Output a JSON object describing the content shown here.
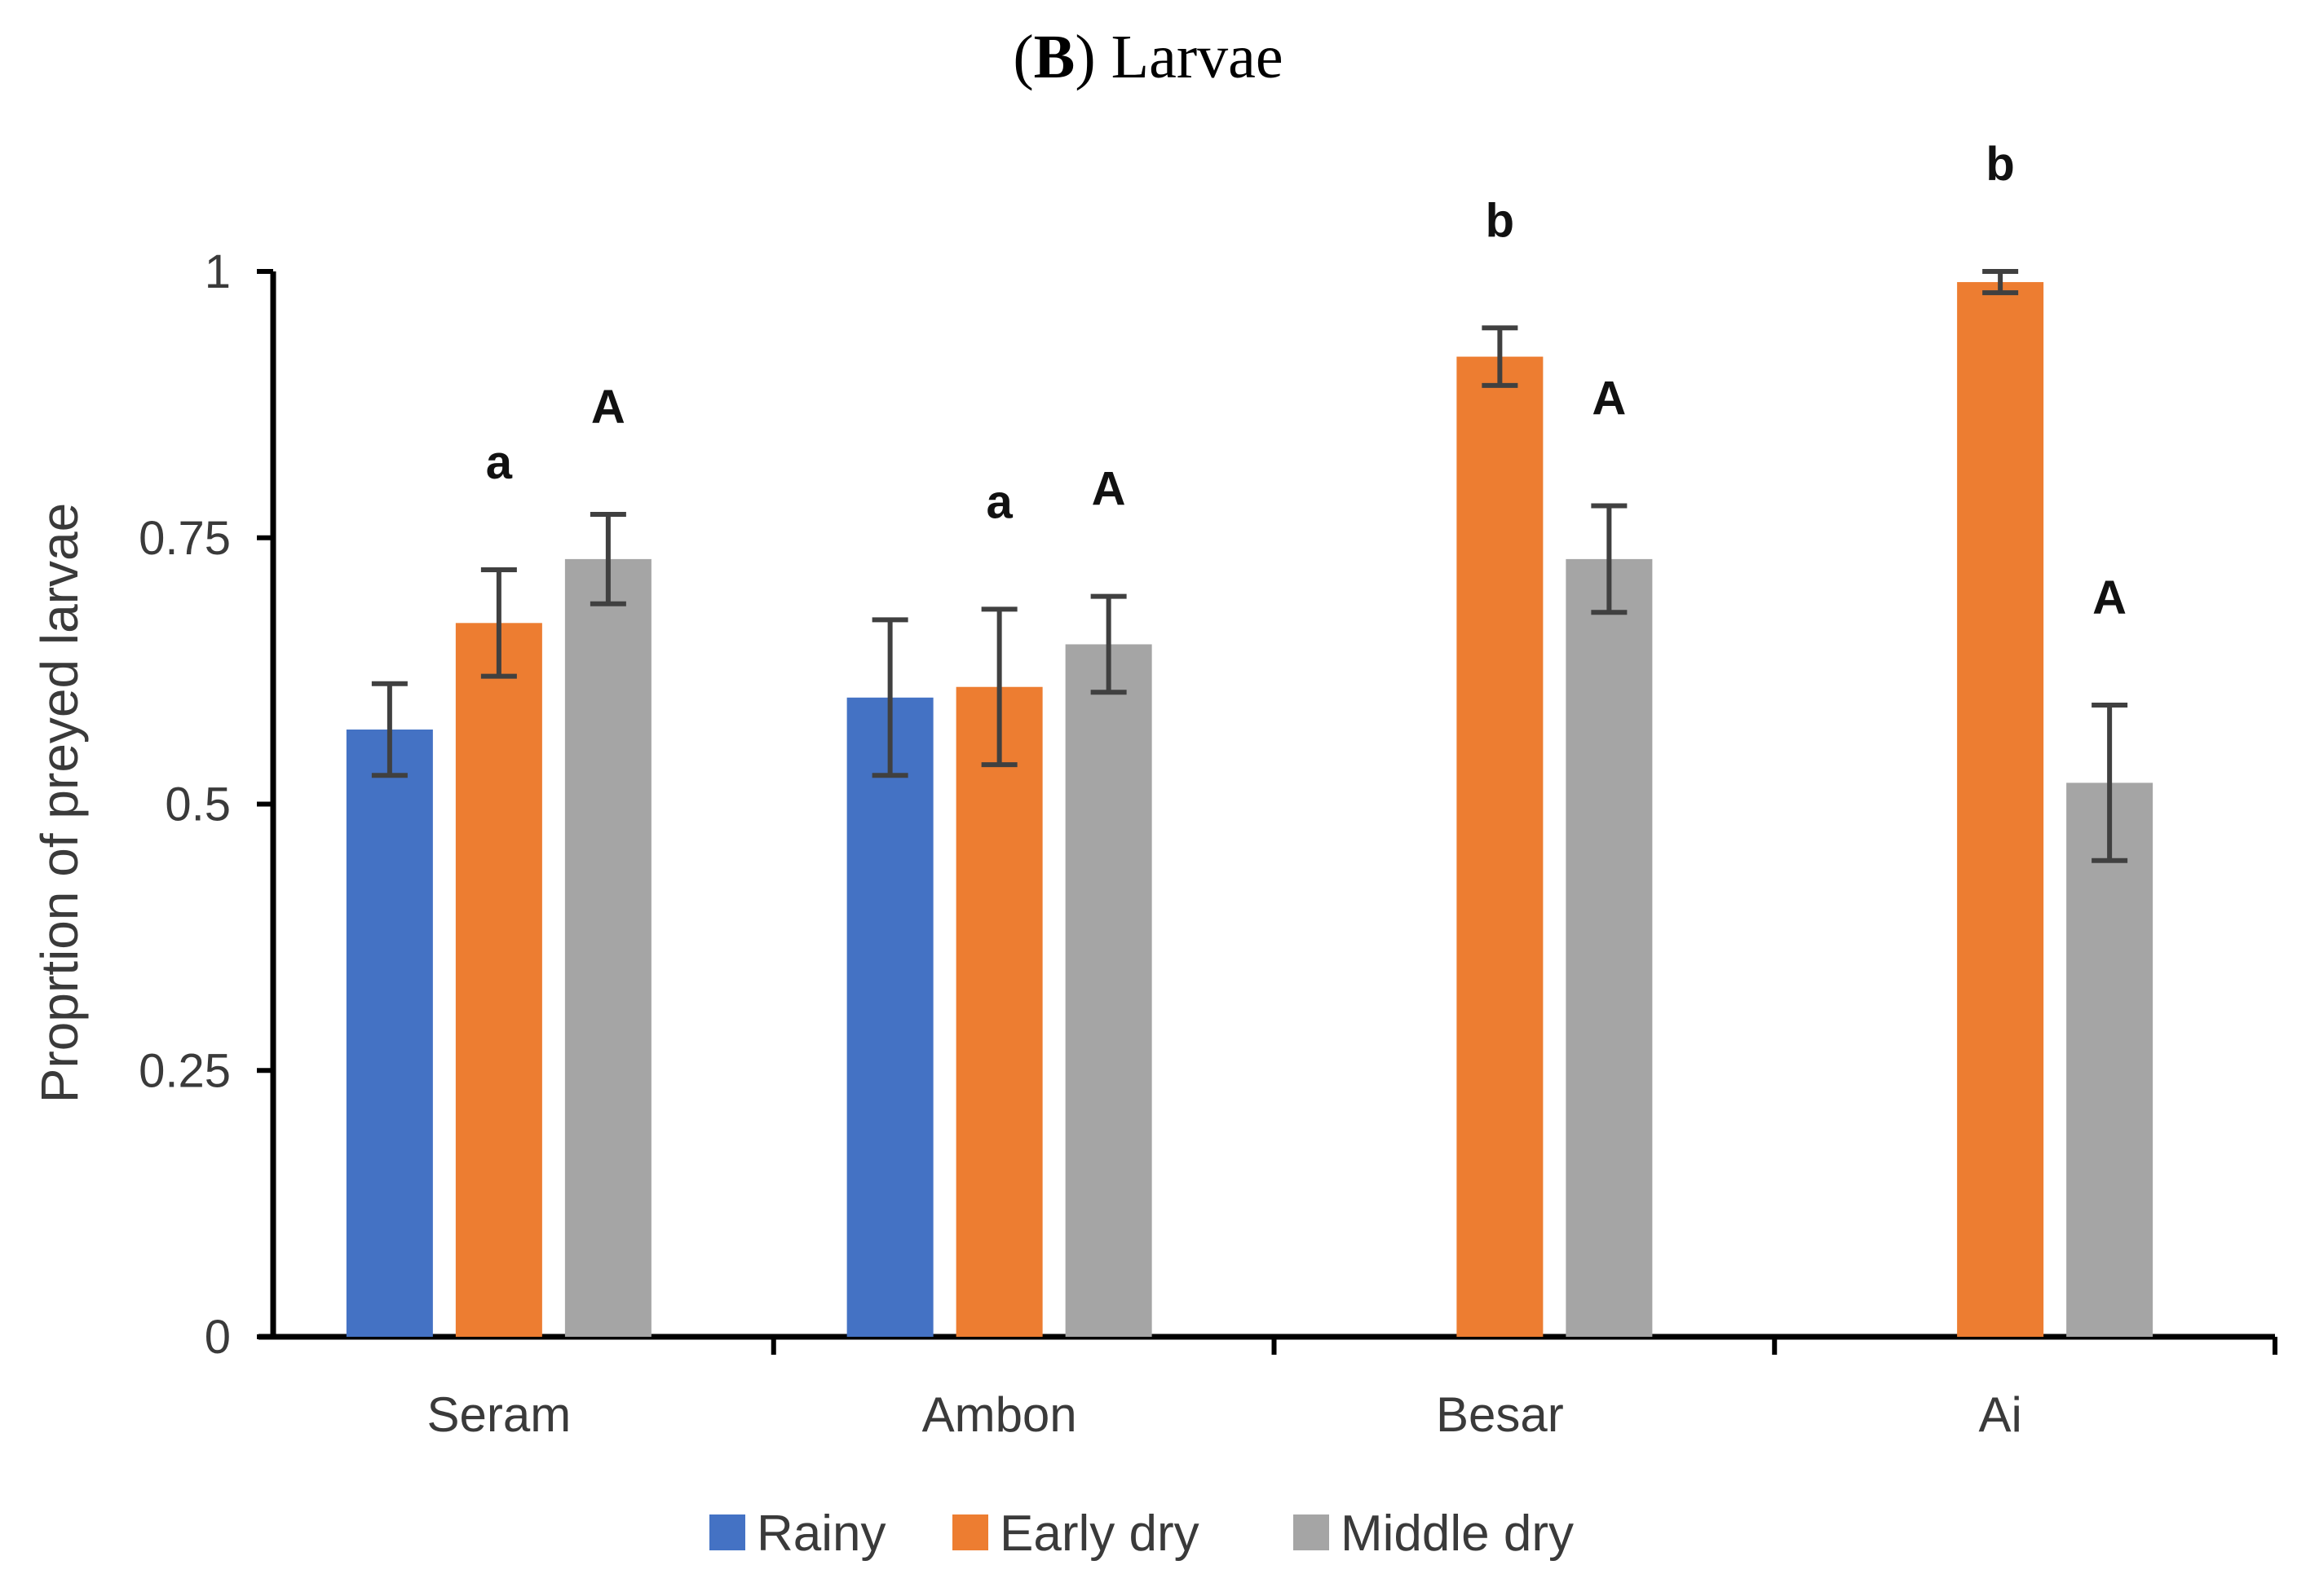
{
  "chart_data": {
    "type": "bar",
    "title_prefix_open": "(",
    "title_letter": "B",
    "title_rest": ") Larvae",
    "ylabel": "Proprtion of preyed larvae",
    "xlabel": "",
    "ylim": [
      0,
      1
    ],
    "yticks": [
      0,
      0.25,
      0.5,
      0.75,
      1
    ],
    "ytick_labels": [
      "0",
      "0.25",
      "0.5",
      "0.75",
      "1"
    ],
    "categories": [
      "Seram",
      "Ambon",
      "Besar",
      "Ai"
    ],
    "series": [
      {
        "name": "Rainy",
        "color": "#4472C4",
        "values": [
          0.57,
          0.6,
          null,
          null
        ],
        "errors": [
          0.043,
          0.073,
          null,
          null
        ],
        "sig_labels": [
          "",
          "",
          "",
          ""
        ]
      },
      {
        "name": "Early dry",
        "color": "#ED7D31",
        "values": [
          0.67,
          0.61,
          0.92,
          0.99
        ],
        "errors": [
          0.05,
          0.073,
          0.027,
          0.01
        ],
        "sig_labels": [
          "a",
          "a",
          "b",
          "b"
        ]
      },
      {
        "name": "Middle dry",
        "color": "#A5A5A5",
        "values": [
          0.73,
          0.65,
          0.73,
          0.52
        ],
        "errors": [
          0.042,
          0.045,
          0.05,
          0.073
        ],
        "sig_labels": [
          "A",
          "A",
          "A",
          "A"
        ]
      }
    ],
    "legend_position": "bottom",
    "grid": false
  }
}
